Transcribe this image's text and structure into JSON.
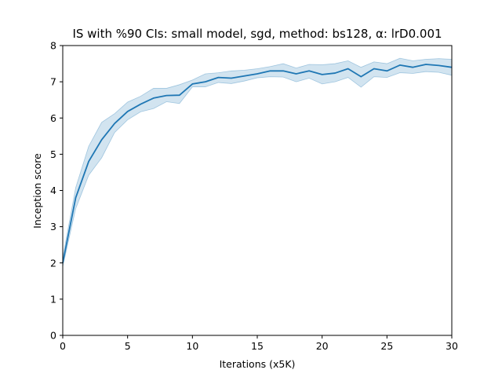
{
  "chart_data": {
    "type": "line",
    "title": "IS with %90 CIs: small model, sgd, method: bs128, α: lrD0.001",
    "xlabel": "Iterations (x5K)",
    "ylabel": "Inception score",
    "xlim": [
      0,
      30
    ],
    "ylim": [
      0,
      8
    ],
    "x_ticks": [
      0,
      5,
      10,
      15,
      20,
      25,
      30
    ],
    "y_ticks": [
      0,
      1,
      2,
      3,
      4,
      5,
      6,
      7,
      8
    ],
    "grid": false,
    "legend": "none",
    "colors": {
      "line": "#1f77b4",
      "band": "#1f77b4",
      "band_opacity": 0.2
    },
    "series": [
      {
        "x": [
          0,
          1,
          2,
          3,
          4,
          5,
          6,
          7,
          8,
          9,
          10,
          11,
          12,
          13,
          14,
          15,
          16,
          17,
          18,
          19,
          20,
          21,
          22,
          23,
          24,
          25,
          26,
          27,
          28,
          29,
          30
        ],
        "y": [
          2.0,
          3.8,
          4.8,
          5.4,
          5.85,
          6.18,
          6.38,
          6.55,
          6.62,
          6.63,
          6.94,
          7.0,
          7.12,
          7.1,
          7.16,
          7.22,
          7.3,
          7.3,
          7.22,
          7.3,
          7.2,
          7.24,
          7.36,
          7.14,
          7.36,
          7.3,
          7.46,
          7.4,
          7.48,
          7.45,
          7.4
        ],
        "ci_lower": [
          1.9,
          3.5,
          4.42,
          4.9,
          5.6,
          5.95,
          6.17,
          6.26,
          6.45,
          6.4,
          6.86,
          6.86,
          6.98,
          6.95,
          7.02,
          7.11,
          7.14,
          7.13,
          7.0,
          7.1,
          6.94,
          7.0,
          7.12,
          6.85,
          7.14,
          7.12,
          7.25,
          7.23,
          7.28,
          7.26,
          7.18
        ],
        "ci_upper": [
          2.15,
          4.08,
          5.22,
          5.88,
          6.12,
          6.44,
          6.6,
          6.82,
          6.82,
          6.92,
          7.05,
          7.22,
          7.25,
          7.3,
          7.32,
          7.36,
          7.42,
          7.5,
          7.38,
          7.48,
          7.47,
          7.5,
          7.58,
          7.4,
          7.55,
          7.5,
          7.65,
          7.58,
          7.62,
          7.64,
          7.62
        ]
      }
    ]
  }
}
